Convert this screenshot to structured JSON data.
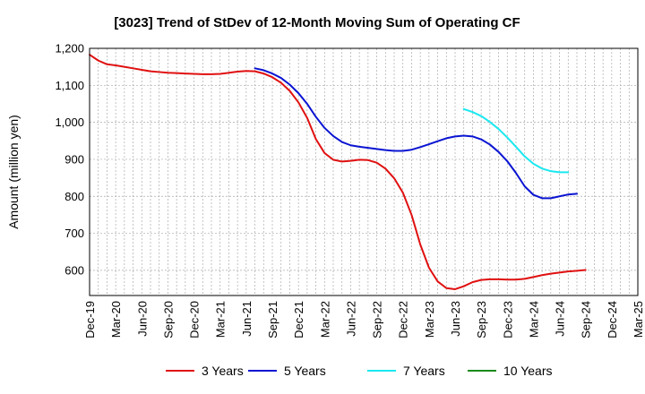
{
  "chart_data": {
    "type": "line",
    "title": "[3023]  Trend of StDev of 12-Month Moving Sum of Operating CF",
    "xlabel": "",
    "ylabel": "Amount (million yen)",
    "ylim": [
      532,
      1200
    ],
    "y_ticks": [
      600,
      700,
      800,
      900,
      1000,
      1100,
      1200
    ],
    "y_tick_labels": [
      "600",
      "700",
      "800",
      "900",
      "1,000",
      "1,100",
      "1,200"
    ],
    "x_tick_labels": [
      "Dec-19",
      "Mar-20",
      "Jun-20",
      "Sep-20",
      "Dec-20",
      "Mar-21",
      "Jun-21",
      "Sep-21",
      "Dec-21",
      "Mar-22",
      "Jun-22",
      "Sep-22",
      "Dec-22",
      "Mar-23",
      "Jun-23",
      "Sep-23",
      "Dec-23",
      "Mar-24",
      "Jun-24",
      "Sep-24",
      "Dec-24",
      "Mar-25"
    ],
    "grid": true,
    "legend_position": "bottom",
    "series": [
      {
        "name": "3 Years",
        "color": "#e01010",
        "values": [
          1183,
          1167,
          1157,
          1154,
          1150,
          1146,
          1142,
          1138,
          1136,
          1134,
          1133,
          1132,
          1131,
          1130,
          1130,
          1131,
          1134,
          1137,
          1139,
          1138,
          1132,
          1122,
          1107,
          1085,
          1054,
          1012,
          955,
          917,
          899,
          894,
          896,
          899,
          898,
          891,
          875,
          849,
          810,
          750,
          670,
          607,
          570,
          552,
          549,
          557,
          568,
          574,
          576,
          576,
          575,
          575,
          577,
          582,
          587,
          591,
          594,
          597,
          599,
          601
        ]
      },
      {
        "name": "5 Years",
        "color": "#0a14d2",
        "values": [
          null,
          null,
          null,
          null,
          null,
          null,
          null,
          null,
          null,
          null,
          null,
          null,
          null,
          null,
          null,
          null,
          null,
          null,
          null,
          1146,
          1141,
          1132,
          1120,
          1102,
          1079,
          1050,
          1015,
          985,
          963,
          947,
          938,
          934,
          931,
          928,
          925,
          923,
          923,
          926,
          933,
          941,
          949,
          957,
          962,
          964,
          962,
          954,
          940,
          920,
          895,
          863,
          827,
          804,
          795,
          795,
          800,
          805,
          807
        ]
      },
      {
        "name": "7 Years",
        "color": "#1ae8f0",
        "values": [
          null,
          null,
          null,
          null,
          null,
          null,
          null,
          null,
          null,
          null,
          null,
          null,
          null,
          null,
          null,
          null,
          null,
          null,
          null,
          null,
          null,
          null,
          null,
          null,
          null,
          null,
          null,
          null,
          null,
          null,
          null,
          null,
          null,
          null,
          null,
          null,
          null,
          null,
          null,
          null,
          null,
          null,
          null,
          1036,
          1028,
          1017,
          1001,
          982,
          959,
          934,
          908,
          888,
          875,
          868,
          865,
          865
        ]
      },
      {
        "name": "10 Years",
        "color": "#1a8a1a",
        "values": []
      }
    ]
  }
}
